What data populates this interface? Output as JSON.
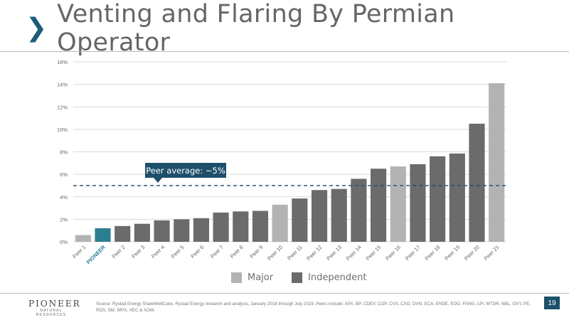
{
  "header": {
    "title": "Venting and Flaring By Permian Operator"
  },
  "colors": {
    "major": "#b3b3b3",
    "independent": "#6b6b6b",
    "pioneer": "#2a7f91",
    "callout": "#1d4f6b",
    "average_line": "#1d4f6b"
  },
  "chart_data": {
    "type": "bar",
    "categories": [
      "Peer 1",
      "PIONEER",
      "Peer 2",
      "Peer 3",
      "Peer 4",
      "Peer 5",
      "Peer 6",
      "Peer 7",
      "Peer 8",
      "Peer 9",
      "Peer 10",
      "Peer 11",
      "Peer 12",
      "Peer 13",
      "Peer 14",
      "Peer 15",
      "Peer 16",
      "Peer 17",
      "Peer 18",
      "Peer 19",
      "Peer 20",
      "Peer 21"
    ],
    "values": [
      0.6,
      1.2,
      1.4,
      1.6,
      1.9,
      2.0,
      2.1,
      2.6,
      2.7,
      2.75,
      3.3,
      3.85,
      4.6,
      4.7,
      5.6,
      6.5,
      6.7,
      6.9,
      7.6,
      7.85,
      10.5,
      14.1
    ],
    "group": [
      "Major",
      "Pioneer",
      "Independent",
      "Independent",
      "Independent",
      "Independent",
      "Independent",
      "Independent",
      "Independent",
      "Independent",
      "Major",
      "Independent",
      "Independent",
      "Independent",
      "Independent",
      "Independent",
      "Major",
      "Independent",
      "Independent",
      "Independent",
      "Independent",
      "Major"
    ],
    "y_ticks": [
      0,
      2,
      4,
      6,
      8,
      10,
      12,
      14,
      16
    ],
    "y_tick_suffix": "%",
    "ylim": [
      0,
      16
    ],
    "grid": true,
    "average_line": 5,
    "average_label": "Peer average: ~5%",
    "legend": [
      "Major",
      "Independent"
    ],
    "legend_position": "bottom-center"
  },
  "footer": {
    "logo_name": "PIONEER",
    "logo_sub": "NATURAL RESOURCES",
    "source": "Source: Rystad Energy ShaleWellCube, Rystad Energy research and analysis, January 2018 through July 2019. Peers include: APA, BP, CDEV, COP, CVX, CXO, DVN, ECA, ENDE, EOG, FANG, LPI, MTDR, NBL, OXY, PE, RDS, SM, WPX, XEC & XOM.",
    "page_number": "19"
  }
}
